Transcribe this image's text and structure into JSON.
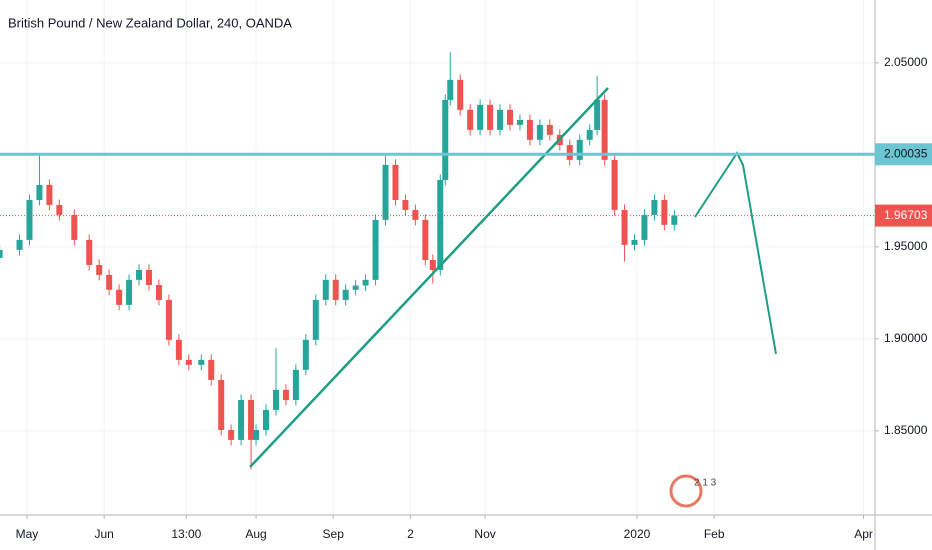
{
  "chart_data": {
    "type": "candlestick",
    "title": "British Pound / New Zealand Dollar, 240, OANDA",
    "x": [
      -11,
      -3,
      1,
      5,
      9,
      13,
      19,
      25,
      29,
      33,
      37,
      41,
      45,
      49,
      53,
      57,
      61,
      65,
      70,
      74,
      78,
      82,
      86,
      90,
      92,
      96,
      100,
      104,
      108,
      112,
      116,
      120,
      124,
      128,
      132,
      136,
      140,
      144,
      148,
      152,
      156,
      160,
      163,
      166,
      168,
      170,
      174,
      178,
      182,
      186,
      190,
      194,
      198,
      202,
      206,
      210,
      214,
      218,
      222,
      226,
      229,
      232,
      236,
      240,
      244,
      248,
      252,
      256,
      260
    ],
    "open": [
      1.944,
      1.9484,
      1.9538,
      1.9755,
      1.9837,
      1.9728,
      1.9674,
      1.9538,
      1.9402,
      1.9348,
      1.9267,
      1.9185,
      1.9321,
      1.9375,
      1.9293,
      1.9212,
      1.8995,
      1.8886,
      1.8859,
      1.8886,
      1.8777,
      1.8505,
      1.8451,
      1.8668,
      1.8451,
      1.8505,
      1.8614,
      1.8723,
      1.8668,
      1.8832,
      1.8995,
      1.9212,
      1.9321,
      1.9212,
      1.9267,
      1.929,
      1.9321,
      1.9647,
      1.9946,
      1.9755,
      1.9701,
      1.9647,
      1.9429,
      1.9375,
      1.9864,
      2.0299,
      2.0408,
      2.0245,
      2.0136,
      2.0272,
      2.0136,
      2.0245,
      2.0163,
      2.019,
      2.0082,
      2.0163,
      2.0109,
      2.0054,
      1.9973,
      2.0082,
      2.0136,
      2.0299,
      1.9973,
      1.9701,
      1.9511,
      1.9538,
      1.9674,
      1.9755,
      1.962
    ],
    "high": [
      1.9514,
      1.9568,
      1.9785,
      2.001,
      1.9867,
      1.9758,
      1.9704,
      1.9568,
      1.9432,
      1.9378,
      1.9297,
      1.9351,
      1.9405,
      1.9405,
      1.9323,
      1.9242,
      1.9025,
      1.8916,
      1.8916,
      1.8916,
      1.8807,
      1.8535,
      1.8698,
      1.8698,
      1.8535,
      1.8644,
      1.895,
      1.8753,
      1.8862,
      1.9025,
      1.9242,
      1.9351,
      1.9351,
      1.9297,
      1.932,
      1.9351,
      1.9677,
      2.001,
      1.9976,
      1.9785,
      1.9731,
      1.9677,
      1.9459,
      1.9894,
      2.0329,
      2.056,
      2.0438,
      2.0275,
      2.0302,
      2.0302,
      2.0275,
      2.0275,
      2.022,
      2.022,
      2.0193,
      2.0193,
      2.0139,
      2.0084,
      2.0112,
      2.0166,
      2.043,
      2.0329,
      2.0003,
      1.9731,
      1.9568,
      1.9704,
      1.9785,
      1.9785,
      1.97
    ],
    "low": [
      1.941,
      1.9454,
      1.9508,
      1.9725,
      1.9698,
      1.9644,
      1.9508,
      1.9372,
      1.9318,
      1.9237,
      1.9155,
      1.9155,
      1.9291,
      1.9263,
      1.9182,
      1.8965,
      1.8856,
      1.8829,
      1.8829,
      1.8747,
      1.8475,
      1.8421,
      1.8421,
      1.829,
      1.8421,
      1.8475,
      1.8584,
      1.8638,
      1.8638,
      1.8802,
      1.8965,
      1.9182,
      1.9182,
      1.9182,
      1.9237,
      1.926,
      1.9291,
      1.9617,
      1.9725,
      1.9671,
      1.9617,
      1.9399,
      1.93,
      1.9345,
      1.9834,
      2.0269,
      2.0215,
      2.0106,
      2.0106,
      2.0106,
      2.0106,
      2.0133,
      2.0133,
      2.0052,
      2.0052,
      2.0079,
      2.0024,
      1.9943,
      1.9943,
      2.0052,
      2.0106,
      1.9943,
      1.9671,
      1.942,
      1.9481,
      1.9508,
      1.9644,
      1.959,
      1.959
    ],
    "close": [
      1.9484,
      1.9538,
      1.9755,
      1.9837,
      1.9728,
      1.9674,
      1.9538,
      1.9402,
      1.9348,
      1.9267,
      1.9185,
      1.9321,
      1.9375,
      1.9293,
      1.9212,
      1.8995,
      1.8886,
      1.8859,
      1.8886,
      1.8777,
      1.8505,
      1.8451,
      1.8668,
      1.8451,
      1.8505,
      1.8614,
      1.8723,
      1.8668,
      1.8832,
      1.8995,
      1.9212,
      1.9321,
      1.9212,
      1.9267,
      1.929,
      1.9321,
      1.9647,
      1.9946,
      1.9755,
      1.9701,
      1.9647,
      1.9429,
      1.9375,
      1.9864,
      2.0299,
      2.0408,
      2.0245,
      2.0136,
      2.0272,
      2.0136,
      2.0245,
      2.0163,
      2.019,
      2.0082,
      2.0163,
      2.0109,
      2.0054,
      1.9973,
      2.0082,
      2.0136,
      2.0299,
      1.9973,
      1.9701,
      1.9511,
      1.9538,
      1.9674,
      1.9755,
      1.962,
      1.967
    ],
    "up_color": "#26a69a",
    "down_color": "#ef5350",
    "xlim": [
      -10.84,
      340.6
    ],
    "xticks": [
      {
        "value": 0,
        "label": "May"
      },
      {
        "value": 31,
        "label": "Jun"
      },
      {
        "value": 64,
        "label": "13:00"
      },
      {
        "value": 92,
        "label": "Aug"
      },
      {
        "value": 123,
        "label": "Sep"
      },
      {
        "value": 154,
        "label": "2"
      },
      {
        "value": 184,
        "label": "Nov"
      },
      {
        "value": 245,
        "label": "2020"
      },
      {
        "value": 276,
        "label": "Feb"
      },
      {
        "value": 336,
        "label": "Apr"
      }
    ],
    "ylim": [
      1.8043,
      2.0842
    ],
    "yticks": [
      {
        "value": 1.85,
        "label": "1.85000"
      },
      {
        "value": 1.9,
        "label": "1.90000"
      },
      {
        "value": 1.95,
        "label": "1.95000"
      },
      {
        "value": 2.05,
        "label": "2.05000"
      }
    ],
    "grid": true,
    "level_line": {
      "value": 2.00035,
      "label": "2.00035",
      "color": "#6cc5d2"
    },
    "last_price": {
      "value": 1.96703,
      "label": "1.96703",
      "color": "#ef5350"
    },
    "logo_text": "2 1 3"
  }
}
